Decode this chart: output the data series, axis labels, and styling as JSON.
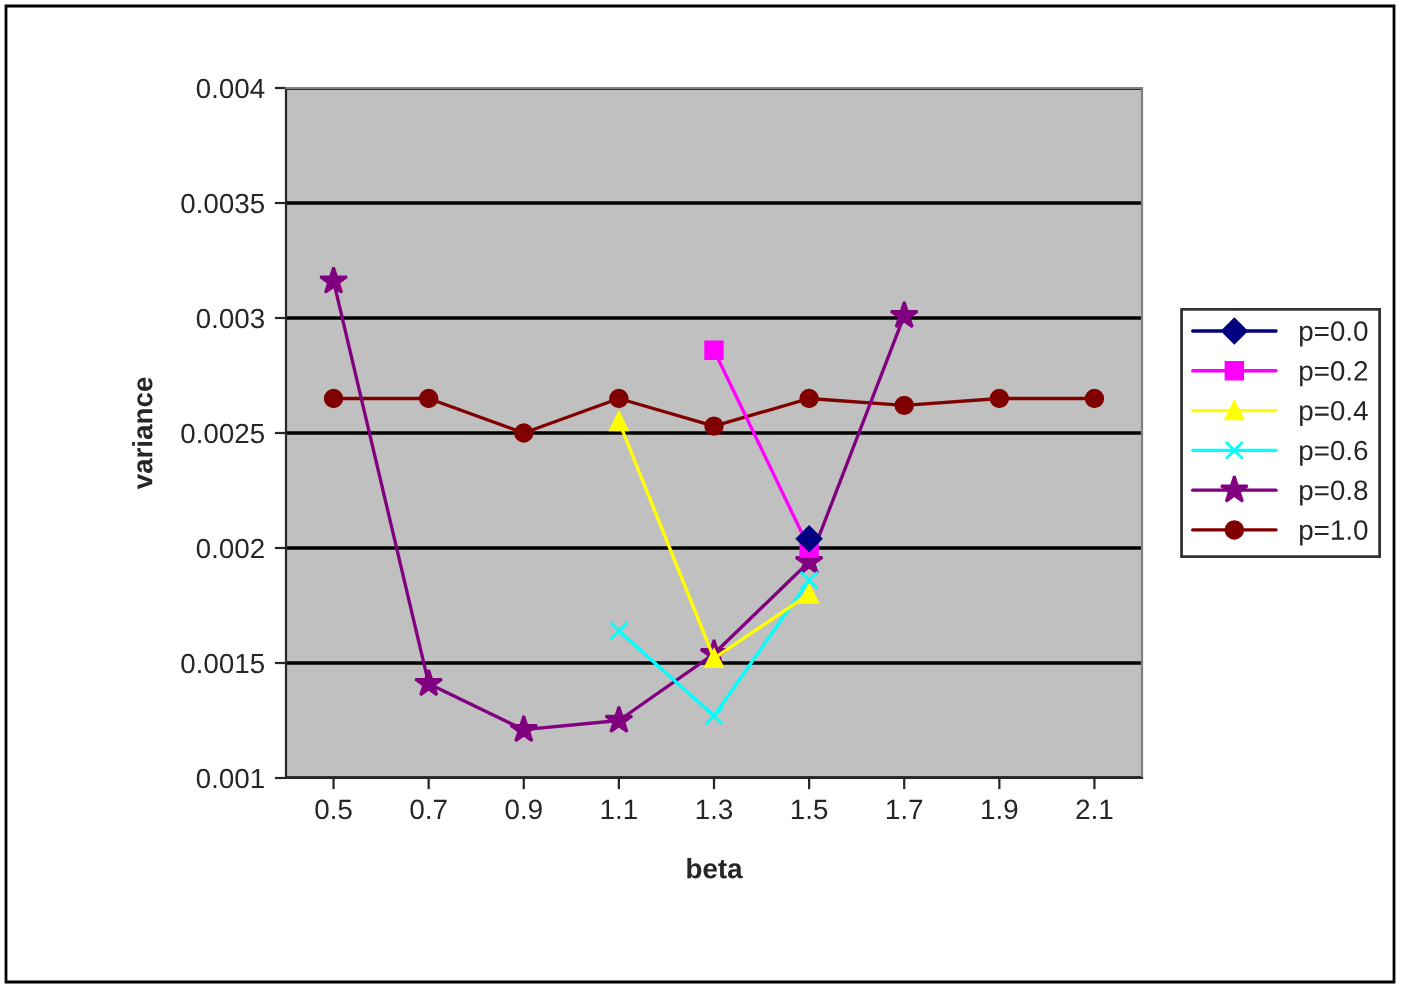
{
  "chart_data": {
    "type": "line",
    "xlabel": "beta",
    "ylabel": "variance",
    "categories": [
      "0.5",
      "0.7",
      "0.9",
      "1.1",
      "1.3",
      "1.5",
      "1.7",
      "1.9",
      "2.1"
    ],
    "series": [
      {
        "name": "p=0.0",
        "color": "#000080",
        "marker": "diamond",
        "values": [
          null,
          null,
          null,
          null,
          null,
          0.00204,
          null,
          null,
          null
        ]
      },
      {
        "name": "p=0.2",
        "color": "#ff00ff",
        "marker": "square",
        "values": [
          null,
          null,
          null,
          null,
          0.00286,
          0.002,
          null,
          null,
          null
        ]
      },
      {
        "name": "p=0.4",
        "color": "#ffff00",
        "marker": "triangle",
        "values": [
          null,
          null,
          null,
          0.00255,
          0.00152,
          0.0018,
          null,
          null,
          null
        ]
      },
      {
        "name": "p=0.6",
        "color": "#00ffff",
        "marker": "cross",
        "values": [
          null,
          null,
          null,
          0.00164,
          0.00127,
          0.00186,
          null,
          null,
          null
        ]
      },
      {
        "name": "p=0.8",
        "color": "#800080",
        "marker": "star",
        "values": [
          0.00316,
          0.00141,
          0.00121,
          0.00125,
          0.00154,
          0.00194,
          0.00301,
          null,
          null
        ]
      },
      {
        "name": "p=1.0",
        "color": "#800000",
        "marker": "circle",
        "values": [
          0.00265,
          0.00265,
          0.0025,
          0.00265,
          0.00253,
          0.00265,
          0.00262,
          0.00265,
          0.00265
        ]
      }
    ],
    "ylim": [
      0.001,
      0.004
    ],
    "yticks": [
      0.001,
      0.0015,
      0.002,
      0.0025,
      0.003,
      0.0035,
      0.004
    ],
    "grid": "y",
    "legend": "right"
  }
}
